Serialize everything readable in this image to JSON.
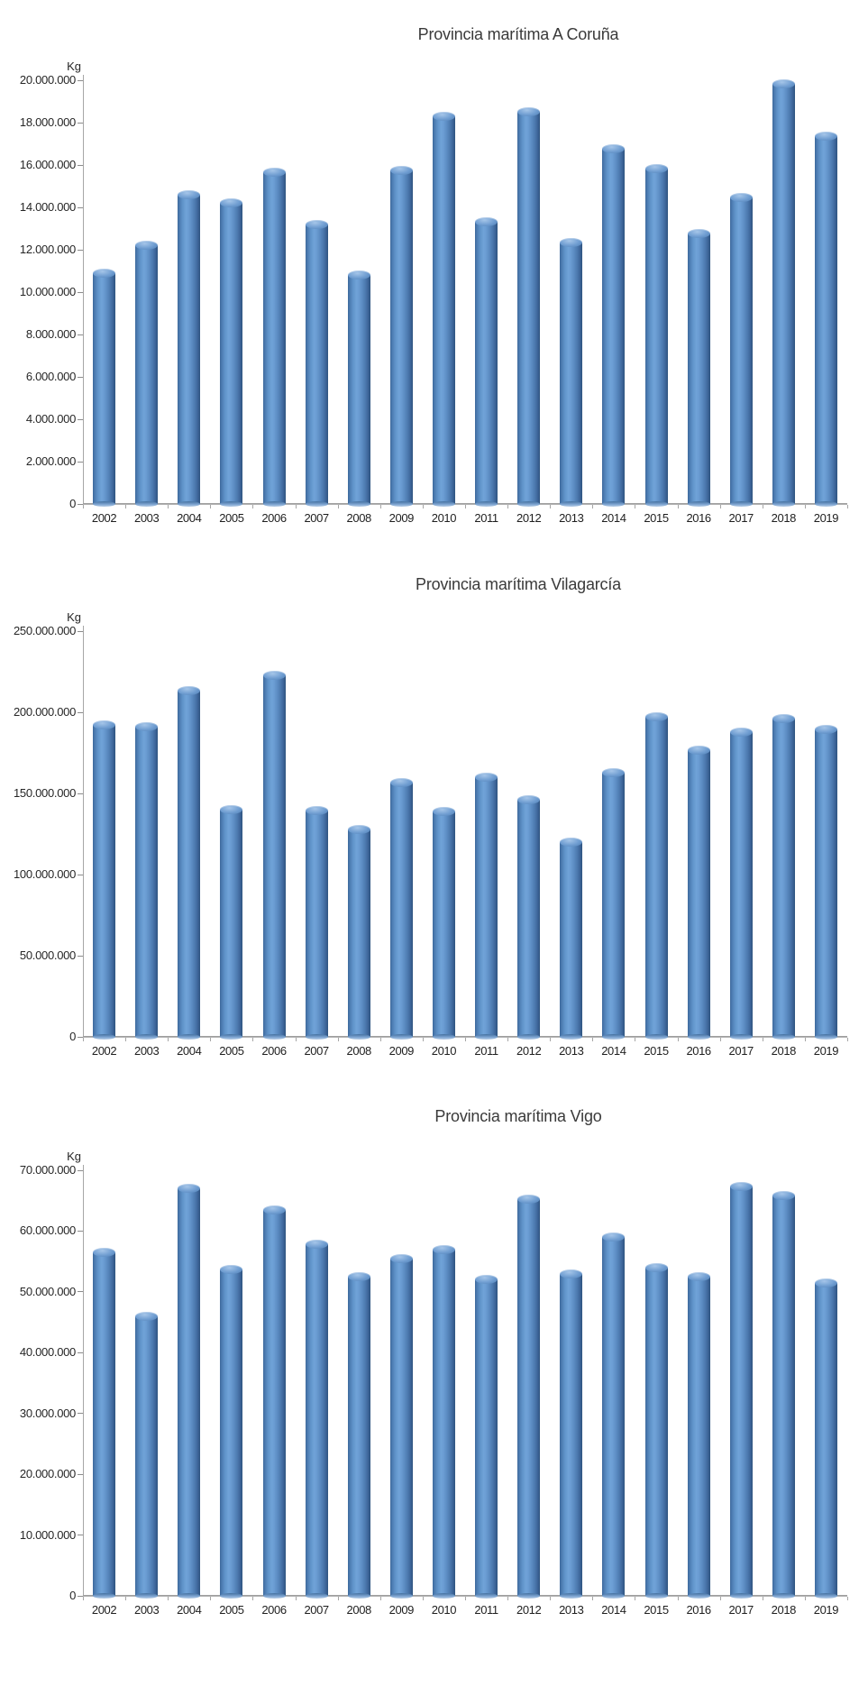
{
  "chart_data": [
    {
      "type": "bar",
      "title": "Provincia marítima A Coruña",
      "y_unit": "Kg",
      "categories": [
        "2002",
        "2003",
        "2004",
        "2005",
        "2006",
        "2007",
        "2008",
        "2009",
        "2010",
        "2011",
        "2012",
        "2013",
        "2014",
        "2015",
        "2016",
        "2017",
        "2018",
        "2019"
      ],
      "values": [
        10900000,
        12200000,
        14600000,
        14200000,
        15650000,
        13200000,
        10800000,
        15750000,
        18300000,
        13300000,
        18500000,
        12350000,
        16750000,
        15850000,
        12750000,
        14450000,
        19850000,
        17350000
      ],
      "ylim": [
        0,
        20000000
      ],
      "ytick_step": 2000000,
      "ytick_labels": [
        "20.000.000",
        "18.000.000",
        "16.000.000",
        "14.000.000",
        "12.000.000",
        "10.000.000",
        "8.000.000",
        "6.000.000",
        "4.000.000",
        "2.000.000",
        "0"
      ],
      "grid": false,
      "legend": "none"
    },
    {
      "type": "bar",
      "title": "Provincia marítima Vilagarcía",
      "y_unit": "Kg",
      "categories": [
        "2002",
        "2003",
        "2004",
        "2005",
        "2006",
        "2007",
        "2008",
        "2009",
        "2010",
        "2011",
        "2012",
        "2013",
        "2014",
        "2015",
        "2016",
        "2017",
        "2018",
        "2019"
      ],
      "values": [
        192000000,
        191000000,
        213500000,
        140000000,
        222500000,
        139500000,
        128000000,
        156500000,
        139000000,
        160000000,
        146000000,
        120000000,
        162500000,
        197000000,
        176500000,
        188000000,
        196000000,
        189500000
      ],
      "ylim": [
        0,
        250000000
      ],
      "ytick_step": 50000000,
      "ytick_labels": [
        "250.000.000",
        "200.000.000",
        "150.000.000",
        "100.000.000",
        "50.000.000",
        "0"
      ],
      "grid": false,
      "legend": "none"
    },
    {
      "type": "bar",
      "title": "Provincia marítima Vigo",
      "y_unit": "Kg",
      "categories": [
        "2002",
        "2003",
        "2004",
        "2005",
        "2006",
        "2007",
        "2008",
        "2009",
        "2010",
        "2011",
        "2012",
        "2013",
        "2014",
        "2015",
        "2016",
        "2017",
        "2018",
        "2019"
      ],
      "values": [
        56500000,
        46000000,
        67000000,
        53700000,
        63500000,
        57800000,
        52500000,
        55500000,
        57000000,
        52000000,
        65300000,
        53000000,
        59000000,
        54000000,
        52500000,
        67400000,
        65800000,
        51400000
      ],
      "ylim": [
        0,
        70000000
      ],
      "ytick_step": 10000000,
      "ytick_labels": [
        "70.000.000",
        "60.000.000",
        "50.000.000",
        "40.000.000",
        "30.000.000",
        "20.000.000",
        "10.000.000",
        "0"
      ],
      "grid": false,
      "legend": "none"
    }
  ],
  "colors": {
    "bar_light": "#70a3d8",
    "bar_mid": "#5d8dc4",
    "bar_dark": "#2f547f",
    "axis_line": "#a6a6a6",
    "tick_text": "#262626",
    "title_text": "#3a3a3a",
    "background": "#ffffff"
  }
}
